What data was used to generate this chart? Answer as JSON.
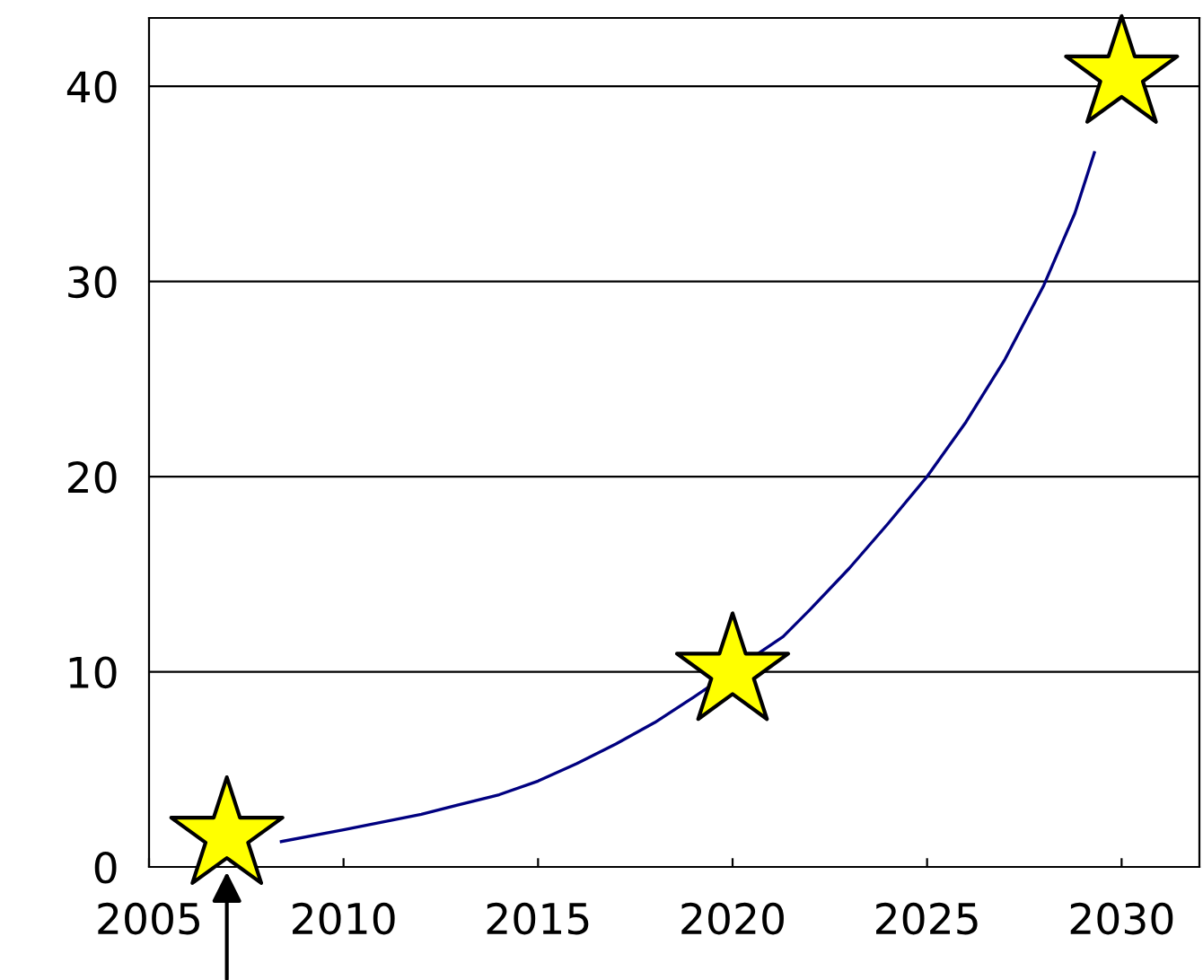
{
  "chart_data": {
    "type": "line",
    "xlim": [
      2005,
      2032
    ],
    "ylim": [
      0,
      43.5
    ],
    "xticks": [
      2005,
      2010,
      2015,
      2020,
      2025,
      2030
    ],
    "yticks": [
      0,
      10,
      20,
      30,
      40
    ],
    "grid": "y",
    "legend": false,
    "series": [
      {
        "color": "#000080",
        "marker": "none",
        "x": [
          2008.4,
          2010,
          2012,
          2014,
          2015,
          2016,
          2017,
          2018,
          2019,
          2021.3,
          2022,
          2023,
          2024,
          2025,
          2026,
          2027,
          2028,
          2028.8,
          2029.3
        ],
        "values": [
          1.3,
          1.9,
          2.7,
          3.7,
          4.4,
          5.3,
          6.3,
          7.4,
          8.7,
          11.8,
          13.2,
          15.3,
          17.6,
          20.0,
          22.8,
          26.0,
          29.8,
          33.5,
          36.6
        ]
      },
      {
        "type": "scatter",
        "color": "#ffff00",
        "marker": "star",
        "x": [
          2007,
          2020,
          2030
        ],
        "values": [
          1.6,
          10.0,
          40.6
        ]
      }
    ]
  }
}
